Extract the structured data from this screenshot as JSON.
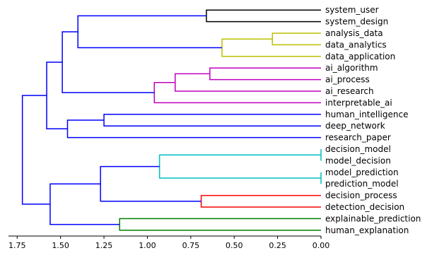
{
  "chart_data": {
    "type": "dendrogram",
    "orientation": "left",
    "x_axis": {
      "xlim": [
        1.8,
        0.0
      ],
      "ticks": [
        1.75,
        1.5,
        1.25,
        1.0,
        0.75,
        0.5,
        0.25,
        0.0
      ],
      "tick_labels": [
        "1.75",
        "1.50",
        "1.25",
        "1.00",
        "0.75",
        "0.50",
        "0.25",
        "0.00"
      ]
    },
    "leaves": [
      "system_user",
      "system_design",
      "analysis_data",
      "data_analytics",
      "data_application",
      "ai_algorithm",
      "ai_process",
      "ai_research",
      "interpretable_ai",
      "human_intelligence",
      "deep_network",
      "research_paper",
      "decision_model",
      "model_decision",
      "model_prediction",
      "prediction_model",
      "decision_process",
      "detection_decision",
      "explainable_prediction",
      "human_explanation"
    ],
    "merges": [
      {
        "id": "m1",
        "a": "system_user",
        "b": "system_design",
        "height": 0.66,
        "color": "#000000"
      },
      {
        "id": "m2",
        "a": "analysis_data",
        "b": "data_analytics",
        "height": 0.28,
        "color": "#bfbf00"
      },
      {
        "id": "m3",
        "a": "m2",
        "b": "data_application",
        "height": 0.57,
        "color": "#bfbf00"
      },
      {
        "id": "m4",
        "a": "m1",
        "b": "m3",
        "height": 1.4,
        "color": "#0000ff"
      },
      {
        "id": "m5",
        "a": "ai_algorithm",
        "b": "ai_process",
        "height": 0.64,
        "color": "#bf00bf"
      },
      {
        "id": "m6",
        "a": "m5",
        "b": "ai_research",
        "height": 0.84,
        "color": "#bf00bf"
      },
      {
        "id": "m7",
        "a": "m6",
        "b": "interpretable_ai",
        "height": 0.96,
        "color": "#bf00bf"
      },
      {
        "id": "m8",
        "a": "m4",
        "b": "m7",
        "height": 1.49,
        "color": "#0000ff"
      },
      {
        "id": "m9",
        "a": "human_intelligence",
        "b": "deep_network",
        "height": 1.25,
        "color": "#0000ff"
      },
      {
        "id": "m10",
        "a": "m9",
        "b": "research_paper",
        "height": 1.46,
        "color": "#0000ff"
      },
      {
        "id": "m11",
        "a": "m8",
        "b": "m10",
        "height": 1.58,
        "color": "#0000ff"
      },
      {
        "id": "m12",
        "a": "decision_model",
        "b": "model_decision",
        "height": 0.0,
        "color": "#00bfbf"
      },
      {
        "id": "m13",
        "a": "model_prediction",
        "b": "prediction_model",
        "height": 0.0,
        "color": "#00bfbf"
      },
      {
        "id": "m14",
        "a": "m12",
        "b": "m13",
        "height": 0.93,
        "color": "#00bfbf"
      },
      {
        "id": "m15",
        "a": "decision_process",
        "b": "detection_decision",
        "height": 0.69,
        "color": "#ff0000"
      },
      {
        "id": "m16",
        "a": "m14",
        "b": "m15",
        "height": 1.27,
        "color": "#0000ff"
      },
      {
        "id": "m17",
        "a": "explainable_prediction",
        "b": "human_explanation",
        "height": 1.16,
        "color": "#008000"
      },
      {
        "id": "m18",
        "a": "m16",
        "b": "m17",
        "height": 1.56,
        "color": "#0000ff"
      },
      {
        "id": "m19",
        "a": "m11",
        "b": "m18",
        "height": 1.72,
        "color": "#0000ff"
      }
    ]
  }
}
